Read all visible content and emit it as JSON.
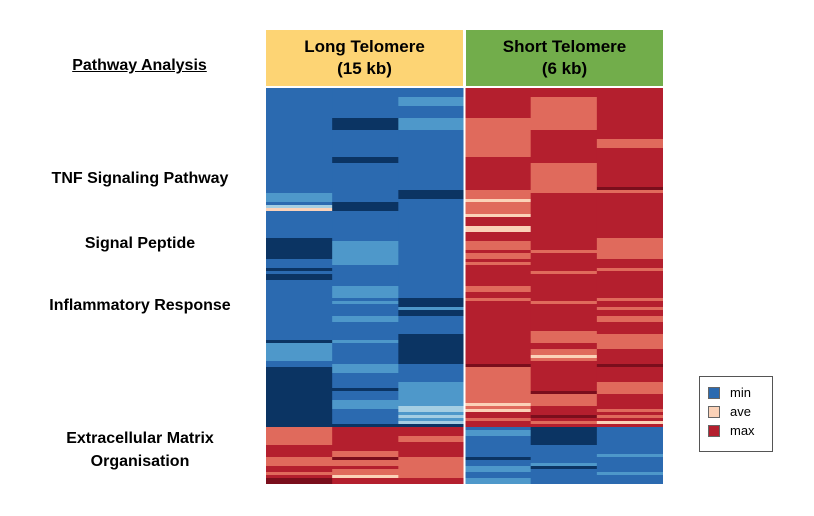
{
  "side_title": "Pathway Analysis",
  "groups": [
    {
      "line1": "Long Telomere",
      "line2": "(15 kb)",
      "color": "#FDD474"
    },
    {
      "line1": "Short Telomere",
      "line2": "(6 kb)",
      "color": "#72AD4B"
    }
  ],
  "pathways": [
    {
      "lines": [
        "TNF Signaling Pathway"
      ]
    },
    {
      "lines": [
        "Signal Peptide"
      ]
    },
    {
      "lines": [
        "Inflammatory Response"
      ]
    },
    {
      "lines": [
        "Extracellular Matrix",
        "Organisation"
      ]
    }
  ],
  "legend": [
    {
      "label": "min",
      "color": "#2B6AB0"
    },
    {
      "label": "ave",
      "color": "#FBD2B8"
    },
    {
      "label": "max",
      "color": "#B41F2E"
    }
  ],
  "chart_data": {
    "type": "heatmap",
    "scale": [
      "min",
      "ave",
      "max"
    ],
    "colors": {
      "dark": "#0B3463",
      "min": "#2B6AB0",
      "light": "#4E98CA",
      "pale": "#A4CEE3",
      "ave": "#FBD2B8",
      "mid": "#E06A5C",
      "max": "#B41F2E",
      "deep": "#7A0E1C"
    },
    "columns": [
      {
        "group": "Long Telomere (15 kb)"
      },
      {
        "group": "Long Telomere (15 kb)"
      },
      {
        "group": "Long Telomere (15 kb)"
      },
      {
        "group": "Short Telomere (6 kb)"
      },
      {
        "group": "Short Telomere (6 kb)"
      },
      {
        "group": "Short Telomere (6 kb)"
      }
    ],
    "row_count": 132,
    "bands": [
      {
        "rows": [
          0,
          2
        ],
        "values": [
          "min",
          "min",
          "min",
          "max",
          "max",
          "max"
        ]
      },
      {
        "rows": [
          3,
          5
        ],
        "values": [
          "min",
          "min",
          "light",
          "max",
          "mid",
          "max"
        ]
      },
      {
        "rows": [
          6,
          9
        ],
        "values": [
          "min",
          "min",
          "min",
          "max",
          "mid",
          "max"
        ]
      },
      {
        "rows": [
          10,
          13
        ],
        "values": [
          "min",
          "dark",
          "light",
          "mid",
          "mid",
          "max"
        ]
      },
      {
        "rows": [
          14,
          16
        ],
        "values": [
          "min",
          "min",
          "min",
          "mid",
          "max",
          "max"
        ]
      },
      {
        "rows": [
          17,
          19
        ],
        "values": [
          "min",
          "min",
          "min",
          "mid",
          "max",
          "mid"
        ]
      },
      {
        "rows": [
          20,
          22
        ],
        "values": [
          "min",
          "min",
          "min",
          "mid",
          "max",
          "max"
        ]
      },
      {
        "rows": [
          23,
          24
        ],
        "values": [
          "min",
          "dark",
          "min",
          "max",
          "max",
          "max"
        ]
      },
      {
        "rows": [
          25,
          32
        ],
        "values": [
          "min",
          "min",
          "min",
          "max",
          "mid",
          "max"
        ]
      },
      {
        "rows": [
          33,
          33
        ],
        "values": [
          "min",
          "min",
          "min",
          "max",
          "mid",
          "deep"
        ]
      },
      {
        "rows": [
          34,
          34
        ],
        "values": [
          "min",
          "min",
          "dark",
          "mid",
          "mid",
          "mid"
        ]
      },
      {
        "rows": [
          35,
          36
        ],
        "values": [
          "light",
          "min",
          "dark",
          "mid",
          "max",
          "max"
        ]
      },
      {
        "rows": [
          37,
          37
        ],
        "values": [
          "light",
          "min",
          "min",
          "ave",
          "max",
          "max"
        ]
      },
      {
        "rows": [
          38,
          38
        ],
        "values": [
          "min",
          "dark",
          "min",
          "mid",
          "max",
          "max"
        ]
      },
      {
        "rows": [
          39,
          39
        ],
        "values": [
          "pale",
          "dark",
          "min",
          "mid",
          "max",
          "max"
        ]
      },
      {
        "rows": [
          40,
          40
        ],
        "values": [
          "ave",
          "dark",
          "min",
          "mid",
          "max",
          "max"
        ]
      },
      {
        "rows": [
          41,
          41
        ],
        "values": [
          "min",
          "min",
          "min",
          "mid",
          "max",
          "max"
        ]
      },
      {
        "rows": [
          42,
          42
        ],
        "values": [
          "min",
          "min",
          "min",
          "ave",
          "max",
          "max"
        ]
      },
      {
        "rows": [
          43,
          45
        ],
        "values": [
          "min",
          "min",
          "min",
          "max",
          "max",
          "max"
        ]
      },
      {
        "rows": [
          46,
          47
        ],
        "values": [
          "min",
          "min",
          "min",
          "ave",
          "max",
          "max"
        ]
      },
      {
        "rows": [
          48,
          49
        ],
        "values": [
          "min",
          "min",
          "min",
          "max",
          "max",
          "max"
        ]
      },
      {
        "rows": [
          50,
          50
        ],
        "values": [
          "dark",
          "min",
          "min",
          "max",
          "max",
          "mid"
        ]
      },
      {
        "rows": [
          51,
          53
        ],
        "values": [
          "dark",
          "light",
          "min",
          "mid",
          "max",
          "mid"
        ]
      },
      {
        "rows": [
          54,
          54
        ],
        "values": [
          "dark",
          "light",
          "min",
          "max",
          "mid",
          "mid"
        ]
      },
      {
        "rows": [
          55,
          56
        ],
        "values": [
          "dark",
          "light",
          "min",
          "mid",
          "max",
          "mid"
        ]
      },
      {
        "rows": [
          57,
          57
        ],
        "values": [
          "min",
          "light",
          "min",
          "max",
          "max",
          "max"
        ]
      },
      {
        "rows": [
          58,
          58
        ],
        "values": [
          "min",
          "light",
          "min",
          "mid",
          "max",
          "max"
        ]
      },
      {
        "rows": [
          59,
          59
        ],
        "values": [
          "min",
          "min",
          "min",
          "max",
          "max",
          "max"
        ]
      },
      {
        "rows": [
          60,
          60
        ],
        "values": [
          "dark",
          "min",
          "min",
          "max",
          "max",
          "mid"
        ]
      },
      {
        "rows": [
          61,
          61
        ],
        "values": [
          "min",
          "min",
          "min",
          "max",
          "mid",
          "max"
        ]
      },
      {
        "rows": [
          62,
          63
        ],
        "values": [
          "dark",
          "min",
          "min",
          "max",
          "max",
          "max"
        ]
      },
      {
        "rows": [
          64,
          65
        ],
        "values": [
          "min",
          "min",
          "min",
          "max",
          "max",
          "max"
        ]
      },
      {
        "rows": [
          66,
          67
        ],
        "values": [
          "min",
          "light",
          "min",
          "mid",
          "max",
          "max"
        ]
      },
      {
        "rows": [
          68,
          69
        ],
        "values": [
          "min",
          "light",
          "min",
          "max",
          "max",
          "max"
        ]
      },
      {
        "rows": [
          70,
          70
        ],
        "values": [
          "min",
          "min",
          "dark",
          "mid",
          "max",
          "mid"
        ]
      },
      {
        "rows": [
          71,
          71
        ],
        "values": [
          "min",
          "light",
          "dark",
          "max",
          "mid",
          "max"
        ]
      },
      {
        "rows": [
          72,
          72
        ],
        "values": [
          "min",
          "min",
          "dark",
          "max",
          "max",
          "max"
        ]
      },
      {
        "rows": [
          73,
          73
        ],
        "values": [
          "min",
          "min",
          "light",
          "max",
          "max",
          "mid"
        ]
      },
      {
        "rows": [
          74,
          75
        ],
        "values": [
          "min",
          "min",
          "dark",
          "max",
          "max",
          "max"
        ]
      },
      {
        "rows": [
          76,
          77
        ],
        "values": [
          "min",
          "light",
          "min",
          "max",
          "max",
          "mid"
        ]
      },
      {
        "rows": [
          78,
          80
        ],
        "values": [
          "min",
          "min",
          "min",
          "max",
          "max",
          "max"
        ]
      },
      {
        "rows": [
          81,
          81
        ],
        "values": [
          "min",
          "min",
          "min",
          "max",
          "mid",
          "max"
        ]
      },
      {
        "rows": [
          82,
          83
        ],
        "values": [
          "min",
          "min",
          "dark",
          "max",
          "mid",
          "mid"
        ]
      },
      {
        "rows": [
          84,
          84
        ],
        "values": [
          "dark",
          "light",
          "dark",
          "max",
          "mid",
          "mid"
        ]
      },
      {
        "rows": [
          85,
          86
        ],
        "values": [
          "light",
          "min",
          "dark",
          "max",
          "max",
          "mid"
        ]
      },
      {
        "rows": [
          87,
          88
        ],
        "values": [
          "light",
          "min",
          "dark",
          "max",
          "mid",
          "max"
        ]
      },
      {
        "rows": [
          89,
          89
        ],
        "values": [
          "light",
          "min",
          "dark",
          "max",
          "ave",
          "max"
        ]
      },
      {
        "rows": [
          90,
          90
        ],
        "values": [
          "light",
          "min",
          "dark",
          "max",
          "mid",
          "max"
        ]
      },
      {
        "rows": [
          91,
          91
        ],
        "values": [
          "min",
          "min",
          "dark",
          "max",
          "max",
          "max"
        ]
      },
      {
        "rows": [
          92,
          92
        ],
        "values": [
          "min",
          "light",
          "min",
          "deep",
          "max",
          "deep"
        ]
      },
      {
        "rows": [
          93,
          94
        ],
        "values": [
          "dark",
          "light",
          "min",
          "mid",
          "max",
          "max"
        ]
      },
      {
        "rows": [
          95,
          97
        ],
        "values": [
          "dark",
          "min",
          "min",
          "mid",
          "max",
          "max"
        ]
      },
      {
        "rows": [
          98,
          99
        ],
        "values": [
          "dark",
          "min",
          "light",
          "mid",
          "max",
          "mid"
        ]
      },
      {
        "rows": [
          100,
          100
        ],
        "values": [
          "dark",
          "dark",
          "light",
          "mid",
          "max",
          "mid"
        ]
      },
      {
        "rows": [
          101,
          101
        ],
        "values": [
          "dark",
          "min",
          "light",
          "mid",
          "deep",
          "mid"
        ]
      },
      {
        "rows": [
          102,
          103
        ],
        "values": [
          "dark",
          "min",
          "light",
          "mid",
          "mid",
          "max"
        ]
      },
      {
        "rows": [
          104,
          104
        ],
        "values": [
          "dark",
          "light",
          "light",
          "mid",
          "mid",
          "max"
        ]
      },
      {
        "rows": [
          105,
          105
        ],
        "values": [
          "dark",
          "light",
          "light",
          "ave",
          "mid",
          "max"
        ]
      },
      {
        "rows": [
          106,
          106
        ],
        "values": [
          "dark",
          "light",
          "pale",
          "mid",
          "max",
          "max"
        ]
      },
      {
        "rows": [
          107,
          107
        ],
        "values": [
          "dark",
          "min",
          "pale",
          "ave",
          "max",
          "mid"
        ]
      },
      {
        "rows": [
          108,
          108
        ],
        "values": [
          "dark",
          "min",
          "light",
          "max",
          "max",
          "max"
        ]
      },
      {
        "rows": [
          109,
          109
        ],
        "values": [
          "dark",
          "min",
          "pale",
          "max",
          "deep",
          "mid"
        ]
      },
      {
        "rows": [
          110,
          110
        ],
        "values": [
          "dark",
          "min",
          "light",
          "mid",
          "max",
          "max"
        ]
      },
      {
        "rows": [
          111,
          111
        ],
        "values": [
          "dark",
          "min",
          "pale",
          "max",
          "mid",
          "ave"
        ]
      },
      {
        "rows": [
          112,
          112
        ],
        "values": [
          "dark",
          "dark",
          "dark",
          "max",
          "max",
          "max"
        ]
      },
      {
        "rows": [
          113,
          113
        ],
        "values": [
          "mid",
          "max",
          "max",
          "min",
          "dark",
          "min"
        ]
      },
      {
        "rows": [
          114,
          114
        ],
        "values": [
          "mid",
          "max",
          "max",
          "light",
          "dark",
          "min"
        ]
      },
      {
        "rows": [
          115,
          115
        ],
        "values": [
          "mid",
          "max",
          "max",
          "light",
          "dark",
          "min"
        ]
      },
      {
        "rows": [
          116,
          116
        ],
        "values": [
          "mid",
          "max",
          "mid",
          "min",
          "dark",
          "min"
        ]
      },
      {
        "rows": [
          117,
          117
        ],
        "values": [
          "mid",
          "max",
          "mid",
          "min",
          "dark",
          "min"
        ]
      },
      {
        "rows": [
          118,
          118
        ],
        "values": [
          "mid",
          "max",
          "max",
          "min",
          "dark",
          "min"
        ]
      },
      {
        "rows": [
          119,
          119
        ],
        "values": [
          "max",
          "max",
          "max",
          "min",
          "min",
          "min"
        ]
      },
      {
        "rows": [
          120,
          120
        ],
        "values": [
          "max",
          "max",
          "max",
          "min",
          "min",
          "min"
        ]
      },
      {
        "rows": [
          121,
          121
        ],
        "values": [
          "max",
          "mid",
          "max",
          "min",
          "min",
          "min"
        ]
      },
      {
        "rows": [
          122,
          122
        ],
        "values": [
          "max",
          "mid",
          "max",
          "min",
          "min",
          "light"
        ]
      },
      {
        "rows": [
          123,
          123
        ],
        "values": [
          "mid",
          "deep",
          "mid",
          "dark",
          "min",
          "min"
        ]
      },
      {
        "rows": [
          124,
          124
        ],
        "values": [
          "mid",
          "mid",
          "mid",
          "min",
          "min",
          "min"
        ]
      },
      {
        "rows": [
          125,
          125
        ],
        "values": [
          "mid",
          "mid",
          "mid",
          "min",
          "light",
          "min"
        ]
      },
      {
        "rows": [
          126,
          126
        ],
        "values": [
          "max",
          "max",
          "mid",
          "light",
          "dark",
          "min"
        ]
      },
      {
        "rows": [
          127,
          127
        ],
        "values": [
          "max",
          "mid",
          "mid",
          "light",
          "min",
          "min"
        ]
      },
      {
        "rows": [
          128,
          128
        ],
        "values": [
          "mid",
          "mid",
          "mid",
          "min",
          "min",
          "light"
        ]
      },
      {
        "rows": [
          129,
          129
        ],
        "values": [
          "max",
          "ave",
          "mid",
          "min",
          "min",
          "min"
        ]
      },
      {
        "rows": [
          130,
          131
        ],
        "values": [
          "deep",
          "max",
          "max",
          "light",
          "min",
          "min"
        ]
      }
    ]
  }
}
